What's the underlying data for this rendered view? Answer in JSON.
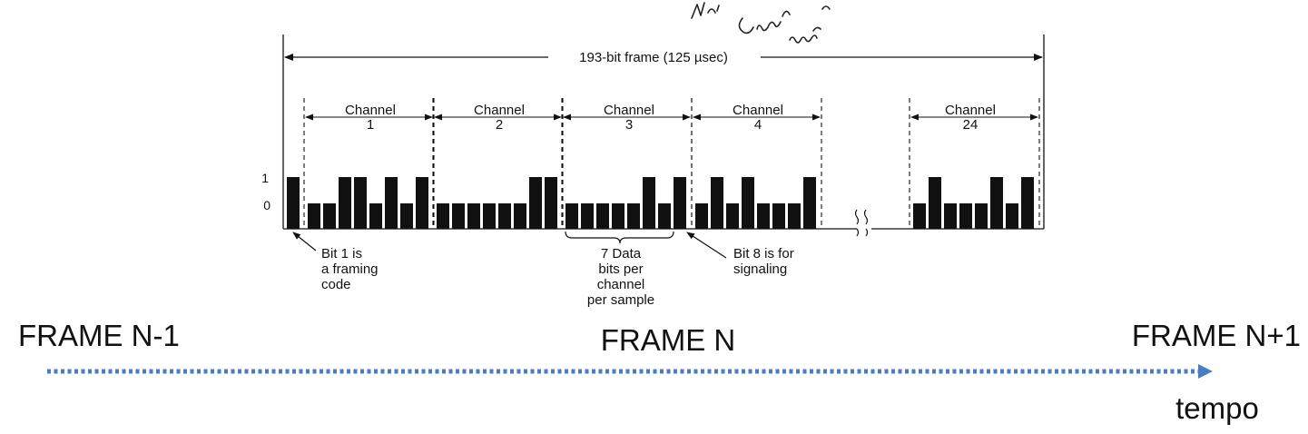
{
  "frame_label": "193-bit frame  (125 µsec)",
  "level_labels": {
    "high": "1",
    "low": "0"
  },
  "channels": [
    {
      "title": "Channel",
      "number": "1",
      "bits": [
        0,
        0,
        1,
        1,
        0,
        1,
        0,
        1
      ]
    },
    {
      "title": "Channel",
      "number": "2",
      "bits": [
        0,
        0,
        0,
        0,
        0,
        0,
        1,
        1
      ]
    },
    {
      "title": "Channel",
      "number": "3",
      "bits": [
        0,
        0,
        0,
        0,
        0,
        1,
        0,
        1
      ]
    },
    {
      "title": "Channel",
      "number": "4",
      "bits": [
        0,
        1,
        0,
        1,
        0,
        0,
        0,
        1
      ]
    },
    {
      "title": "Channel",
      "number": "24",
      "bits": [
        0,
        1,
        0,
        0,
        0,
        1,
        0,
        1
      ]
    }
  ],
  "framing_bit": 1,
  "notes": {
    "framing": [
      "Bit 1 is",
      "a framing",
      "code"
    ],
    "data_bits": [
      "7 Data",
      "bits per",
      "channel",
      "per sample"
    ],
    "signaling": [
      "Bit 8 is for",
      "signaling"
    ]
  },
  "timeline": {
    "prev": "FRAME N-1",
    "current": "FRAME N",
    "next": "FRAME N+1",
    "axis": "tempo",
    "color": "#4a7ec4"
  }
}
